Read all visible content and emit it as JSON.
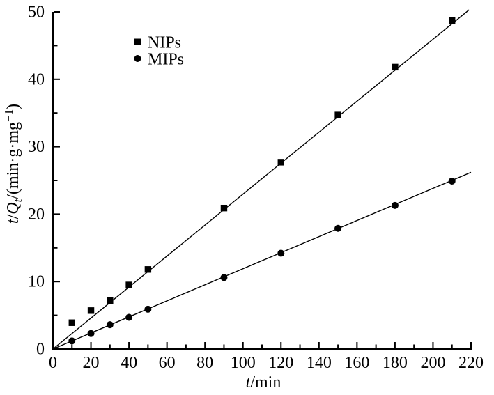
{
  "figure": {
    "background_color": "#ffffff",
    "foreground_color": "#000000"
  },
  "chart_data": {
    "type": "scatter",
    "title": "",
    "xlabel": "t/min",
    "ylabel": "t/Qt/(min·g·mg−1)",
    "xlabel_parts": [
      {
        "text": "t",
        "style": "italic"
      },
      {
        "text": "/min",
        "style": "normal"
      }
    ],
    "ylabel_parts": [
      {
        "text": "t",
        "style": "italic"
      },
      {
        "text": "/",
        "style": "normal"
      },
      {
        "text": "Q",
        "style": "italic"
      },
      {
        "text": "t",
        "style": "italic-sub"
      },
      {
        "text": "/(min·g·mg",
        "style": "normal"
      },
      {
        "text": "−1",
        "style": "sup"
      },
      {
        "text": ")",
        "style": "normal"
      }
    ],
    "xlim": [
      0,
      220
    ],
    "ylim": [
      0,
      50
    ],
    "x_major_tick_step": 20,
    "x_minor_tick_step": 10,
    "y_major_tick_step": 10,
    "y_minor_tick_step": 5,
    "x_tick_labels": [
      "0",
      "20",
      "40",
      "60",
      "80",
      "100",
      "120",
      "140",
      "160",
      "180",
      "200",
      "220"
    ],
    "y_tick_labels": [
      "0",
      "10",
      "20",
      "30",
      "40",
      "50"
    ],
    "grid": false,
    "x": [
      10,
      20,
      30,
      40,
      50,
      90,
      120,
      150,
      180,
      210
    ],
    "series": [
      {
        "name": "NIPs",
        "marker": "square",
        "color": "#000000",
        "values": [
          3.9,
          5.7,
          7.2,
          9.5,
          11.8,
          20.9,
          27.7,
          34.7,
          41.8,
          48.7
        ],
        "fit_line": {
          "x": [
            0,
            219
          ],
          "y": [
            0,
            50.3
          ]
        }
      },
      {
        "name": "MIPs",
        "marker": "circle",
        "color": "#000000",
        "values": [
          1.2,
          2.3,
          3.6,
          4.7,
          5.9,
          10.6,
          14.2,
          17.9,
          21.3,
          24.9
        ],
        "fit_line": {
          "x": [
            0,
            220
          ],
          "y": [
            0,
            26.2
          ]
        }
      }
    ],
    "legend": {
      "position": "upper-left-inside",
      "items": [
        "NIPs",
        "MIPs"
      ]
    }
  }
}
